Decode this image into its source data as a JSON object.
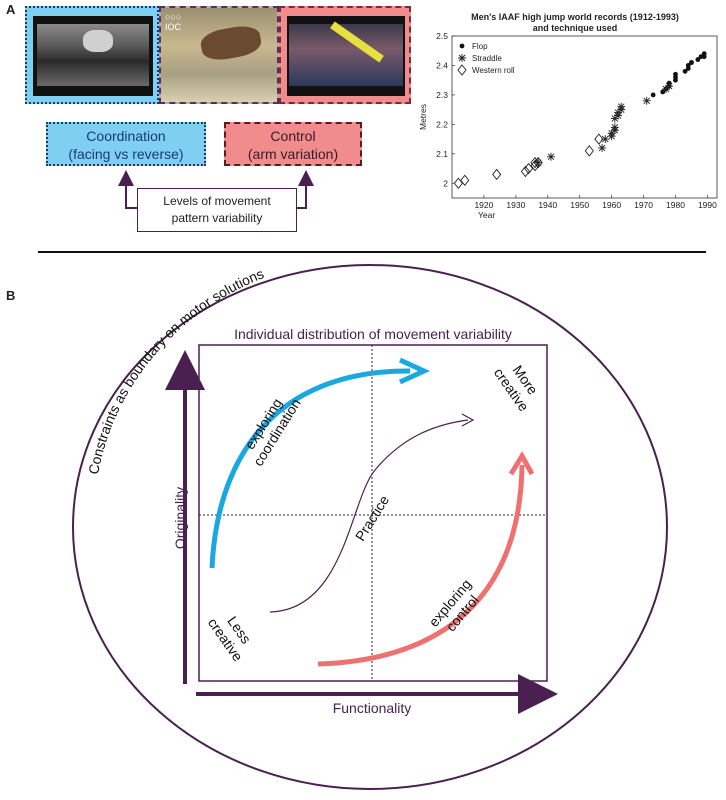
{
  "panel_a": {
    "label": "A",
    "photo_logo_rings": "○○○",
    "photo_logo_text": "IOC",
    "coordination_box": {
      "line1": "Coordination",
      "line2": "(facing vs reverse)"
    },
    "control_box": {
      "line1": "Control",
      "line2": "(arm variation)"
    },
    "levels_box": {
      "line1": "Levels of movement",
      "line2": "pattern  variability"
    }
  },
  "chart_data": {
    "type": "scatter",
    "title": "Men's IAAF high jump world records (1912-1993)",
    "subtitle": "and technique used",
    "xlabel": "Year",
    "ylabel": "Metres",
    "xlim": [
      1910,
      1993
    ],
    "ylim": [
      1.95,
      2.5
    ],
    "x_ticks": [
      1920,
      1930,
      1940,
      1950,
      1960,
      1970,
      1980,
      1990
    ],
    "y_ticks": [
      2,
      2.1,
      2.2,
      2.3,
      2.4,
      2.5
    ],
    "grid": false,
    "legend_position": "top-left",
    "series": [
      {
        "name": "Flop",
        "marker": "dot",
        "x": [
          1973,
          1976,
          1977,
          1978,
          1978,
          1980,
          1980,
          1980,
          1983,
          1984,
          1984,
          1985,
          1985,
          1987,
          1988,
          1989,
          1989
        ],
        "y": [
          2.3,
          2.31,
          2.32,
          2.33,
          2.34,
          2.35,
          2.36,
          2.37,
          2.38,
          2.39,
          2.4,
          2.41,
          2.41,
          2.42,
          2.43,
          2.43,
          2.44
        ]
      },
      {
        "name": "Straddle",
        "marker": "asterisk",
        "x": [
          1937,
          1941,
          1957,
          1958,
          1960,
          1960,
          1961,
          1961,
          1961,
          1962,
          1962,
          1963,
          1963,
          1971,
          1977,
          1978
        ],
        "y": [
          2.07,
          2.09,
          2.12,
          2.15,
          2.16,
          2.17,
          2.18,
          2.19,
          2.22,
          2.23,
          2.24,
          2.25,
          2.26,
          2.28,
          2.32,
          2.33
        ]
      },
      {
        "name": "Western roll",
        "marker": "diamond",
        "x": [
          1912,
          1914,
          1924,
          1933,
          1934,
          1936,
          1936,
          1937,
          1953,
          1956
        ],
        "y": [
          2.0,
          2.01,
          2.03,
          2.04,
          2.05,
          2.06,
          2.07,
          2.07,
          2.11,
          2.15
        ]
      }
    ]
  },
  "panel_b": {
    "label": "B",
    "boundary_label": "Constraints as boundary on motor solutions",
    "box_title": "Individual  distribution  of movement variability",
    "y_axis_label": "Originality",
    "x_axis_label": "Functionality",
    "more_creative_1": "More",
    "more_creative_2": "creative",
    "less_creative_1": "Less",
    "less_creative_2": "creative",
    "practice": "Practice",
    "exploring_coordination_1": "exploring",
    "exploring_coordination_2": "coordination",
    "exploring_control_1": "exploring",
    "exploring_control_2": "control"
  },
  "colors": {
    "coordination": "#1aa8e0",
    "control": "#f07070",
    "dark_purple": "#4a2050",
    "box_blue_fill": "#7fd0f0",
    "box_red_fill": "#f08c8c"
  }
}
